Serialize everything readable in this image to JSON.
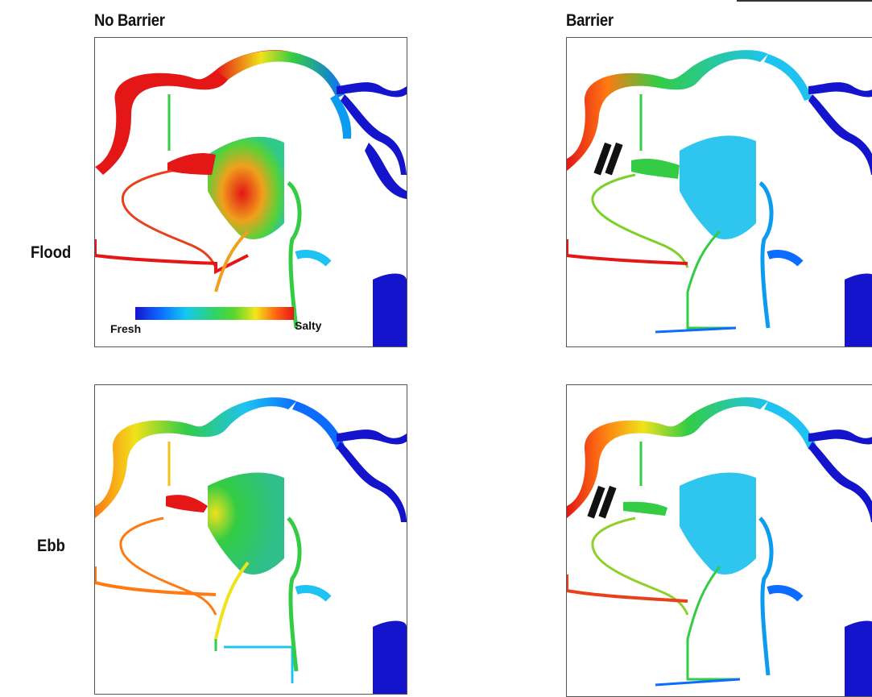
{
  "columns": {
    "left": "No Barrier",
    "right": "Barrier"
  },
  "rows": {
    "top": "Flood",
    "bottom": "Ebb"
  },
  "legend": {
    "low": "Fresh",
    "high": "Salty"
  },
  "colors": {
    "fresh": "#1414cc",
    "blue": "#0b6cff",
    "cyan": "#1ec3f2",
    "green": "#33cc44",
    "yellow": "#f0e21b",
    "orange": "#ff7a12",
    "salty": "#e41616"
  }
}
